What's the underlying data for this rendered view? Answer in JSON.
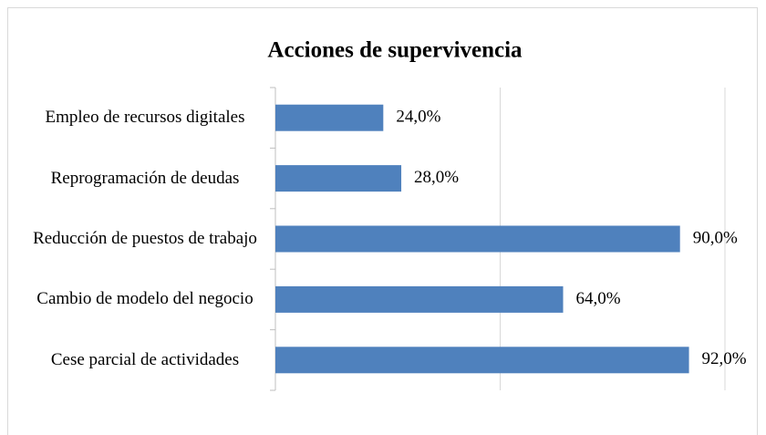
{
  "chart_data": {
    "type": "barh",
    "title": "Acciones de supervivencia",
    "categories": [
      "Empleo de recursos digitales",
      "Reprogramación de deudas",
      "Reducción de puestos de trabajo",
      "Cambio de modelo del negocio",
      "Cese parcial de actividades"
    ],
    "values": [
      24,
      28,
      90,
      64,
      92
    ],
    "value_labels": [
      "24,0%",
      "28,0%",
      "90,0%",
      "64,0%",
      "92,0%"
    ],
    "color": "#4f81bd",
    "xlim": [
      0,
      100
    ],
    "xticks": [
      0,
      50,
      100
    ],
    "grid": true
  }
}
